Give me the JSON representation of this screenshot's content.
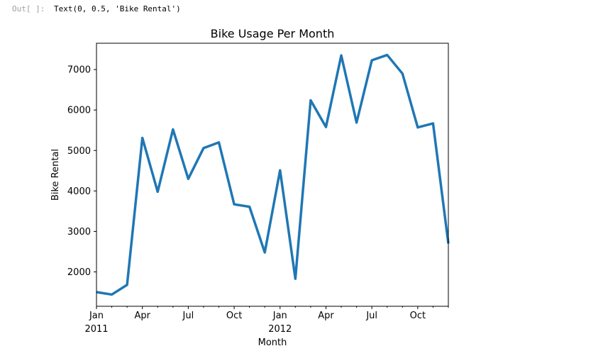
{
  "cell": {
    "prompt": "Out[ ]:",
    "output_text": "Text(0, 0.5, 'Bike Rental')"
  },
  "chart_data": {
    "type": "line",
    "title": "Bike Usage Per Month",
    "xlabel": "Month",
    "ylabel": "Bike Rental",
    "color": "#1f77b4",
    "x_tick_labels": [
      {
        "month": 0,
        "label": "Jan",
        "sublabel": "2011"
      },
      {
        "month": 3,
        "label": "Apr",
        "sublabel": ""
      },
      {
        "month": 6,
        "label": "Jul",
        "sublabel": ""
      },
      {
        "month": 9,
        "label": "Oct",
        "sublabel": ""
      },
      {
        "month": 12,
        "label": "Jan",
        "sublabel": "2012"
      },
      {
        "month": 15,
        "label": "Apr",
        "sublabel": ""
      },
      {
        "month": 18,
        "label": "Jul",
        "sublabel": ""
      },
      {
        "month": 21,
        "label": "Oct",
        "sublabel": ""
      }
    ],
    "y_ticks": [
      2000,
      3000,
      4000,
      5000,
      6000,
      7000
    ],
    "ylim": [
      1150,
      7650
    ],
    "series": [
      {
        "x": [
          "2011-01",
          "2011-02",
          "2011-03",
          "2011-04",
          "2011-05",
          "2011-06",
          "2011-07",
          "2011-08",
          "2011-09",
          "2011-10",
          "2011-11",
          "2011-12",
          "2012-01",
          "2012-02",
          "2012-03",
          "2012-04",
          "2012-05",
          "2012-06",
          "2012-07",
          "2012-08",
          "2012-09",
          "2012-10",
          "2012-11",
          "2012-12"
        ],
        "values": [
          1500,
          1440,
          1680,
          5310,
          3980,
          5520,
          4300,
          5060,
          5200,
          3670,
          3610,
          2480,
          4510,
          1830,
          6240,
          5580,
          7350,
          5690,
          7230,
          7360,
          6900,
          5570,
          5670,
          2700
        ]
      }
    ]
  }
}
